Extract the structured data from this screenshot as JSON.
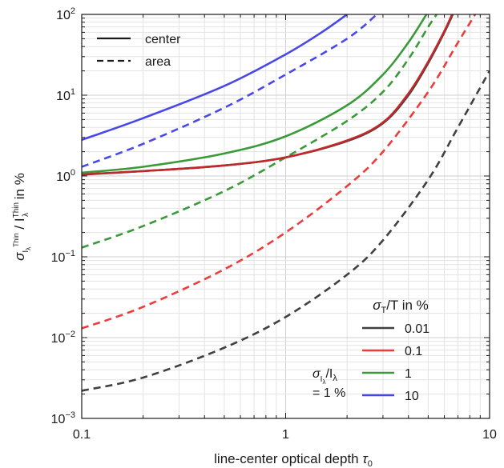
{
  "chart_data": {
    "type": "line",
    "xlabel": "line-center optical depth τ₀",
    "ylabel": "σ_{I_λ^Thin} / I_λ^Thin in %",
    "xscale": "log",
    "yscale": "log",
    "xlim": [
      0.1,
      10
    ],
    "ylim": [
      0.001,
      100
    ],
    "grid": true,
    "x_ticks": [
      "0.1",
      "1",
      "10"
    ],
    "y_ticks": [
      "10⁻³",
      "10⁻²",
      "10⁻¹",
      "10⁰",
      "10¹",
      "10²"
    ],
    "styles_legend": {
      "placement": "top-left",
      "entries": [
        {
          "label": "center",
          "dash": "solid"
        },
        {
          "label": "area",
          "dash": "dashed"
        }
      ]
    },
    "color_legend": {
      "placement": "bottom-right",
      "title": "σ_T/T in %",
      "entries": [
        {
          "label": "0.01",
          "color": "#404040"
        },
        {
          "label": "0.1",
          "color": "#ee3b3b"
        },
        {
          "label": "1",
          "color": "#3a9a3a"
        },
        {
          "label": "10",
          "color": "#4848e8"
        }
      ]
    },
    "annotation": {
      "line1": "σ_{I_λ}/I_λ",
      "line2": "= 1 %"
    },
    "series": [
      {
        "name": "0.01",
        "style": "center",
        "color": "#404040",
        "points": [
          [
            0.1,
            1.04
          ],
          [
            0.2,
            1.15
          ],
          [
            0.5,
            1.35
          ],
          [
            1,
            1.7
          ],
          [
            2,
            2.7
          ],
          [
            3,
            4.5
          ],
          [
            4,
            10
          ],
          [
            5,
            25
          ],
          [
            6,
            60
          ],
          [
            6.6,
            100
          ]
        ]
      },
      {
        "name": "0.1",
        "style": "center",
        "color": "#c0282a",
        "points": [
          [
            0.1,
            1.05
          ],
          [
            0.2,
            1.15
          ],
          [
            0.5,
            1.35
          ],
          [
            1,
            1.7
          ],
          [
            2,
            2.75
          ],
          [
            3,
            4.6
          ],
          [
            4,
            10.5
          ],
          [
            5,
            26
          ],
          [
            6,
            62
          ],
          [
            6.55,
            100
          ]
        ]
      },
      {
        "name": "1",
        "style": "center",
        "color": "#3a9a3a",
        "points": [
          [
            0.1,
            1.1
          ],
          [
            0.2,
            1.3
          ],
          [
            0.5,
            1.9
          ],
          [
            1,
            3.1
          ],
          [
            2,
            7.5
          ],
          [
            3,
            18
          ],
          [
            4,
            45
          ],
          [
            4.9,
            100
          ]
        ]
      },
      {
        "name": "10",
        "style": "center",
        "color": "#4848e8",
        "points": [
          [
            0.1,
            2.8
          ],
          [
            0.2,
            5.2
          ],
          [
            0.5,
            13
          ],
          [
            1,
            32
          ],
          [
            1.5,
            60
          ],
          [
            2,
            100
          ]
        ]
      },
      {
        "name": "0.01",
        "style": "area",
        "color": "#404040",
        "points": [
          [
            0.1,
            0.0022
          ],
          [
            0.2,
            0.0032
          ],
          [
            0.5,
            0.0075
          ],
          [
            1,
            0.018
          ],
          [
            2,
            0.06
          ],
          [
            3,
            0.16
          ],
          [
            5,
            0.9
          ],
          [
            7,
            4
          ],
          [
            10,
            20
          ]
        ]
      },
      {
        "name": "0.1",
        "style": "area",
        "color": "#ee3b3b",
        "points": [
          [
            0.1,
            0.013
          ],
          [
            0.2,
            0.024
          ],
          [
            0.5,
            0.07
          ],
          [
            1,
            0.2
          ],
          [
            2,
            0.75
          ],
          [
            3,
            2
          ],
          [
            5,
            11
          ],
          [
            7,
            45
          ],
          [
            8.5,
            100
          ]
        ]
      },
      {
        "name": "1",
        "style": "area",
        "color": "#3a9a3a",
        "points": [
          [
            0.1,
            0.13
          ],
          [
            0.2,
            0.24
          ],
          [
            0.5,
            0.65
          ],
          [
            1,
            1.7
          ],
          [
            2,
            4.8
          ],
          [
            3,
            11
          ],
          [
            4,
            28
          ],
          [
            5,
            70
          ],
          [
            5.5,
            100
          ]
        ]
      },
      {
        "name": "10",
        "style": "area",
        "color": "#4848e8",
        "points": [
          [
            0.1,
            1.3
          ],
          [
            0.2,
            2.5
          ],
          [
            0.5,
            7
          ],
          [
            1,
            18
          ],
          [
            2,
            50
          ],
          [
            2.8,
            100
          ]
        ]
      }
    ]
  }
}
